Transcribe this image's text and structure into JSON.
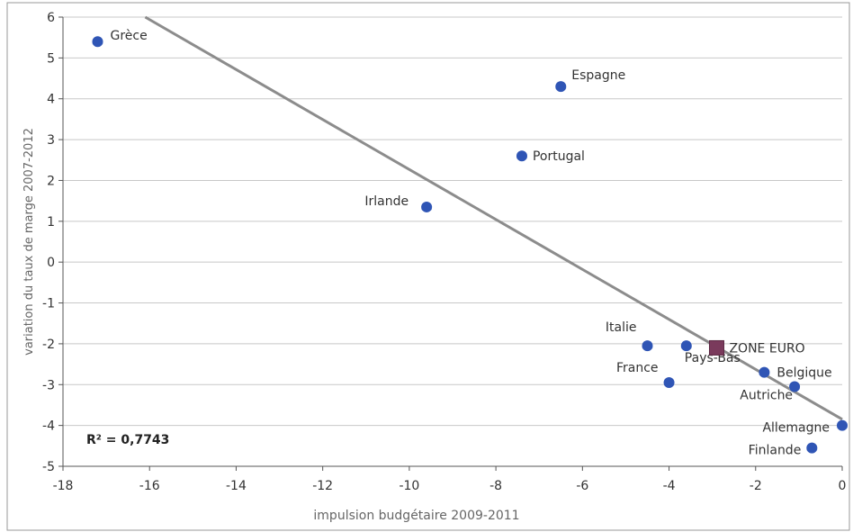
{
  "chart_data": {
    "type": "scatter",
    "xlabel": "impulsion budgétaire 2009-2011",
    "ylabel": "variation du taux de marge 2007-2012",
    "xlim": [
      -18,
      0
    ],
    "ylim": [
      -5,
      6
    ],
    "x_ticks": [
      -18,
      -16,
      -14,
      -12,
      -10,
      -8,
      -6,
      -4,
      -2,
      0
    ],
    "y_ticks": [
      -5,
      -4,
      -3,
      -2,
      -1,
      0,
      1,
      2,
      3,
      4,
      5,
      6
    ],
    "grid": "horizontal",
    "annotation": "R² = 0,7743",
    "points": [
      {
        "label": "Grèce",
        "x": -17.2,
        "y": 5.4,
        "marker": "circle"
      },
      {
        "label": "Espagne",
        "x": -6.5,
        "y": 4.3,
        "marker": "circle"
      },
      {
        "label": "Portugal",
        "x": -7.4,
        "y": 2.6,
        "marker": "circle"
      },
      {
        "label": "Irlande",
        "x": -9.6,
        "y": 1.35,
        "marker": "circle"
      },
      {
        "label": "Italie",
        "x": -4.5,
        "y": -2.05,
        "marker": "circle"
      },
      {
        "label": "Pays-Bas",
        "x": -3.6,
        "y": -2.05,
        "marker": "circle"
      },
      {
        "label": "France",
        "x": -4.0,
        "y": -2.95,
        "marker": "circle"
      },
      {
        "label": "ZONE EURO",
        "x": -2.9,
        "y": -2.1,
        "marker": "square"
      },
      {
        "label": "Belgique",
        "x": -1.8,
        "y": -2.7,
        "marker": "circle"
      },
      {
        "label": "Autriche",
        "x": -1.1,
        "y": -3.05,
        "marker": "circle"
      },
      {
        "label": "Allemagne",
        "x": 0.0,
        "y": -4.0,
        "marker": "circle"
      },
      {
        "label": "Finlande",
        "x": -0.7,
        "y": -4.55,
        "marker": "circle"
      }
    ],
    "trendline": {
      "x": [
        -16.1,
        0.0
      ],
      "y": [
        6.0,
        -3.85
      ]
    },
    "colors": {
      "point": "#2f55b5",
      "square": "#7a3a5c",
      "trendline": "#8c8c8c",
      "grid": "#c8c8c8"
    }
  }
}
